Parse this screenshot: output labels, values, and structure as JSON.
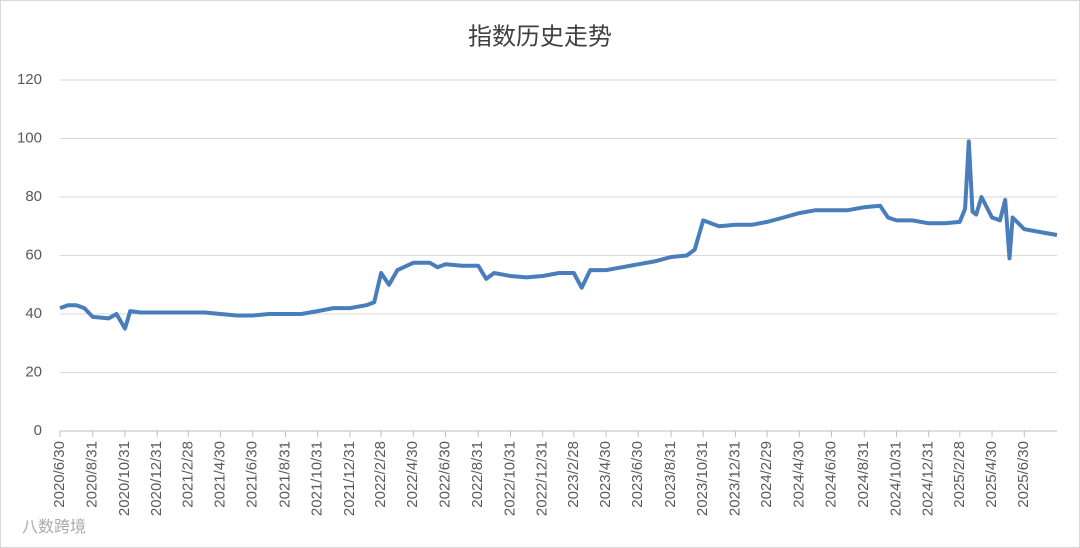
{
  "chart_data": {
    "type": "line",
    "title": "指数历史走势",
    "watermark": "八数跨境",
    "x": [
      "2020/6/30",
      "2020/7/15",
      "2020/7/31",
      "2020/8/15",
      "2020/8/31",
      "2020/9/30",
      "2020/10/15",
      "2020/10/31",
      "2020/11/10",
      "2020/11/30",
      "2020/12/31",
      "2021/1/31",
      "2021/2/28",
      "2021/3/31",
      "2021/4/30",
      "2021/5/31",
      "2021/6/30",
      "2021/7/31",
      "2021/8/31",
      "2021/9/30",
      "2021/10/31",
      "2021/11/30",
      "2021/12/31",
      "2022/1/31",
      "2022/2/15",
      "2022/2/28",
      "2022/3/15",
      "2022/3/31",
      "2022/4/30",
      "2022/5/31",
      "2022/6/15",
      "2022/6/30",
      "2022/7/31",
      "2022/8/31",
      "2022/9/15",
      "2022/9/30",
      "2022/10/31",
      "2022/11/30",
      "2022/12/31",
      "2023/1/31",
      "2023/2/28",
      "2023/3/15",
      "2023/3/31",
      "2023/4/30",
      "2023/5/31",
      "2023/6/30",
      "2023/7/31",
      "2023/8/31",
      "2023/9/30",
      "2023/10/15",
      "2023/10/31",
      "2023/11/30",
      "2023/12/31",
      "2024/1/31",
      "2024/2/29",
      "2024/3/31",
      "2024/4/30",
      "2024/5/31",
      "2024/6/30",
      "2024/7/31",
      "2024/8/31",
      "2024/9/30",
      "2024/10/15",
      "2024/10/31",
      "2024/11/30",
      "2024/12/31",
      "2025/1/31",
      "2025/2/28",
      "2025/3/10",
      "2025/3/17",
      "2025/3/24",
      "2025/3/31",
      "2025/4/10",
      "2025/4/30",
      "2025/5/15",
      "2025/5/25",
      "2025/6/2",
      "2025/6/8",
      "2025/6/30",
      "2025/7/31",
      "2025/8/31"
    ],
    "series": [
      {
        "name": "指数",
        "color": "#4a7ebb",
        "values": [
          42,
          43,
          43,
          42,
          39,
          38.5,
          40,
          35,
          41,
          40.5,
          40.5,
          40.5,
          40.5,
          40.5,
          40,
          39.5,
          39.5,
          40,
          40,
          40,
          41,
          42,
          42,
          43,
          44,
          54,
          50,
          55,
          57.5,
          57.5,
          56,
          57,
          56.5,
          56.5,
          52,
          54,
          53,
          52.5,
          53,
          54,
          54,
          49,
          55,
          55,
          56,
          57,
          58,
          59.5,
          60,
          62,
          72,
          70,
          70.5,
          70.5,
          71.5,
          73,
          74.5,
          75.5,
          75.5,
          75.5,
          76.5,
          77,
          73,
          72,
          72,
          71,
          71,
          71.5,
          76,
          99,
          75,
          74,
          80,
          73,
          72,
          79,
          59,
          73,
          69,
          68,
          67
        ]
      }
    ],
    "xlim": [
      "2020/6/30",
      "2025/8/31"
    ],
    "xticks": [
      "2020/6/30",
      "2020/8/31",
      "2020/10/31",
      "2020/12/31",
      "2021/2/28",
      "2021/4/30",
      "2021/6/30",
      "2021/8/31",
      "2021/10/31",
      "2021/12/31",
      "2022/2/28",
      "2022/4/30",
      "2022/6/30",
      "2022/8/31",
      "2022/10/31",
      "2022/12/31",
      "2023/2/28",
      "2023/4/30",
      "2023/6/30",
      "2023/8/31",
      "2023/10/31",
      "2023/12/31",
      "2024/2/29",
      "2024/4/30",
      "2024/6/30",
      "2024/8/31",
      "2024/10/31",
      "2024/12/31",
      "2025/2/28",
      "2025/4/30",
      "2025/6/30"
    ],
    "ylim": [
      0,
      120
    ],
    "yticks": [
      0,
      20,
      40,
      60,
      80,
      100,
      120
    ],
    "grid": true
  }
}
